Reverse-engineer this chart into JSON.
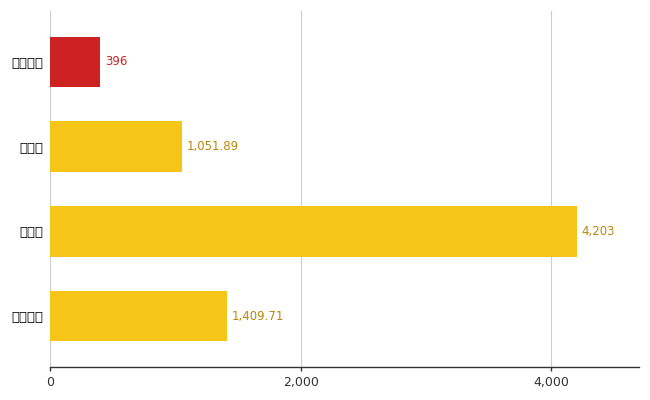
{
  "categories": [
    "八千代町",
    "県平均",
    "県最大",
    "全国平均"
  ],
  "values": [
    396,
    1051.89,
    4203,
    1409.71
  ],
  "labels": [
    "396",
    "1,051.89",
    "4,203",
    "1,409.71"
  ],
  "bar_colors": [
    "#cc2222",
    "#f5c518",
    "#f5c518",
    "#f5c518"
  ],
  "background_color": "#ffffff",
  "grid_color": "#cccccc",
  "label_color_first": "#cc2222",
  "label_color_rest": "#b8860b",
  "xlim": [
    0,
    4700
  ],
  "xticks": [
    0,
    2000,
    4000
  ],
  "bar_height": 0.6,
  "label_fontsize": 8.5,
  "ytick_fontsize": 9.5,
  "xtick_fontsize": 9
}
